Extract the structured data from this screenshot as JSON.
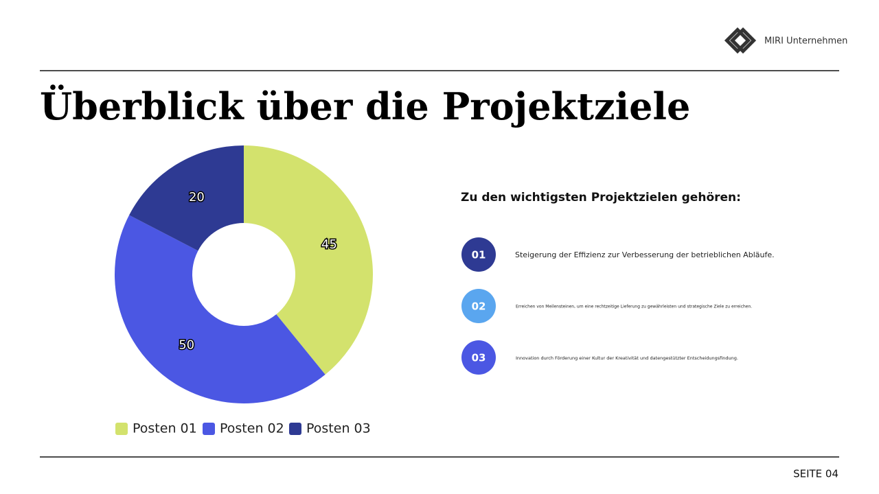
{
  "header": {
    "brand": "MIRI Unternehmen"
  },
  "title": "Überblick über die Projektziele",
  "chart_data": {
    "type": "donut",
    "categories": [
      "Posten 01",
      "Posten 02",
      "Posten 03"
    ],
    "values": [
      45,
      50,
      20
    ],
    "colors": [
      "#d3e26d",
      "#4b57e3",
      "#2e3a93"
    ]
  },
  "goals": {
    "heading": "Zu den wichtigsten Projektzielen gehören:",
    "items": [
      {
        "number": "01",
        "text": "Steigerung der Effizienz zur Verbesserung der betrieblichen Abläufe."
      },
      {
        "number": "02",
        "text": "Erreichen von Meilensteinen, um eine rechtzeitige Lieferung zu gewährleisten und strategische Ziele zu erreichen."
      },
      {
        "number": "03",
        "text": "Innovation durch Förderung einer Kultur der Kreativität und datengestützter Entscheidungsfindung."
      }
    ]
  },
  "footer": {
    "page": "SEITE 04"
  }
}
